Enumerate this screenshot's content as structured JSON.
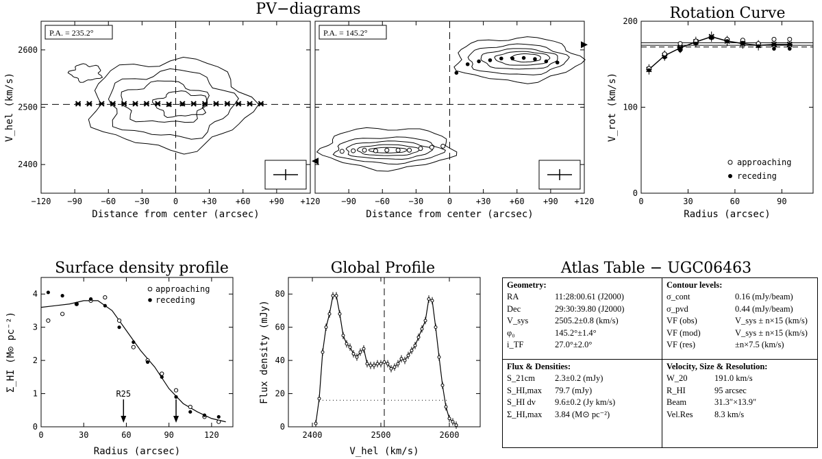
{
  "figure": {
    "pv_title": "PV−diagrams",
    "rc_title": "Rotation Curve",
    "sd_title": "Surface density profile",
    "gp_title": "Global Profile",
    "atlas_title": "Atlas Table − UGC06463"
  },
  "chart_data": [
    {
      "type": "contour",
      "id": "pv1",
      "label": "P.A. = 235.2°",
      "xlabel": "Distance from center (arcsec)",
      "ylabel": "V_hel (km/s)",
      "xlim": [
        -120,
        120
      ],
      "ylim": [
        2350,
        2650
      ],
      "xticks": [
        "−120",
        "−90",
        "−60",
        "−30",
        "0",
        "+30",
        "+60",
        "+90",
        "+120"
      ],
      "yticks": [
        "2400",
        "2500",
        "2600"
      ],
      "systemic_velocity": 2505,
      "points_receding": [
        [
          -87,
          2506
        ],
        [
          -77,
          2506
        ],
        [
          -66,
          2506
        ],
        [
          -56,
          2506
        ],
        [
          -46,
          2506
        ],
        [
          -36,
          2506
        ],
        [
          -26,
          2506
        ],
        [
          -16,
          2506
        ],
        [
          -6,
          2505
        ],
        [
          6,
          2506
        ],
        [
          16,
          2506
        ],
        [
          26,
          2506
        ],
        [
          36,
          2506
        ],
        [
          46,
          2506
        ],
        [
          56,
          2506
        ],
        [
          66,
          2506
        ],
        [
          76,
          2506
        ]
      ],
      "points_approaching": [
        [
          -6,
          2504
        ],
        [
          6,
          2505
        ]
      ]
    },
    {
      "type": "contour",
      "id": "pv2",
      "label": "P.A. = 145.2°",
      "xlabel": "Distance from center (arcsec)",
      "ylabel": "",
      "xlim": [
        -120,
        120
      ],
      "ylim": [
        2350,
        2650
      ],
      "xticks": [
        "−90",
        "−60",
        "−30",
        "0",
        "+30",
        "+60",
        "+90",
        "+120"
      ],
      "yticks": [],
      "systemic_velocity": 2505,
      "points_receding": [
        [
          6,
          2560
        ],
        [
          16,
          2575
        ],
        [
          26,
          2580
        ],
        [
          36,
          2582
        ],
        [
          46,
          2585
        ],
        [
          56,
          2585
        ],
        [
          66,
          2586
        ],
        [
          76,
          2584
        ],
        [
          86,
          2580
        ],
        [
          96,
          2578
        ]
      ],
      "points_approaching": [
        [
          -96,
          2423
        ],
        [
          -86,
          2424
        ],
        [
          -76,
          2425
        ],
        [
          -66,
          2424
        ],
        [
          -56,
          2425
        ],
        [
          -46,
          2425
        ],
        [
          -36,
          2425
        ],
        [
          -26,
          2428
        ],
        [
          -16,
          2430
        ],
        [
          -6,
          2432
        ]
      ]
    },
    {
      "type": "scatter",
      "id": "rotation-curve",
      "title": "Rotation Curve",
      "xlabel": "Radius (arcsec)",
      "ylabel": "V_rot (km/s)",
      "xlim": [
        0,
        110
      ],
      "ylim": [
        0,
        200
      ],
      "xticks": [
        "0",
        "30",
        "60",
        "90"
      ],
      "yticks": [
        "0",
        "100",
        "200"
      ],
      "series": [
        {
          "name": "approaching",
          "x": [
            5,
            15,
            25,
            35,
            45,
            55,
            65,
            75,
            85,
            95
          ],
          "y": [
            145,
            162,
            174,
            177,
            181,
            179,
            178,
            174,
            179,
            179
          ]
        },
        {
          "name": "receding",
          "x": [
            5,
            15,
            25,
            35,
            45,
            55,
            65,
            75,
            85,
            95
          ],
          "y": [
            143,
            158,
            166,
            174,
            181,
            177,
            175,
            171,
            168,
            168
          ]
        },
        {
          "name": "model",
          "x": [
            5,
            15,
            25,
            35,
            45,
            55,
            65,
            75,
            85,
            95
          ],
          "y": [
            144,
            160,
            169,
            176,
            182,
            177,
            174,
            172,
            173,
            173
          ]
        }
      ],
      "reference_lines": [
        175,
        172
      ]
    },
    {
      "type": "scatter",
      "id": "surface-density",
      "title": "Surface density profile",
      "xlabel": "Radius (arcsec)",
      "ylabel": "Σ_HI (M⊙ pc⁻²)",
      "xlim": [
        0,
        135
      ],
      "ylim": [
        0,
        4.5
      ],
      "xticks": [
        "0",
        "30",
        "60",
        "90",
        "120"
      ],
      "yticks": [
        "0",
        "1",
        "2",
        "3",
        "4"
      ],
      "series": [
        {
          "name": "approaching",
          "x": [
            5,
            15,
            25,
            35,
            45,
            55,
            65,
            75,
            85,
            95,
            105,
            115,
            125
          ],
          "y": [
            3.2,
            3.4,
            3.7,
            3.8,
            3.9,
            3.2,
            2.4,
            2.0,
            1.6,
            1.1,
            0.6,
            0.3,
            0.15
          ]
        },
        {
          "name": "receding",
          "x": [
            5,
            15,
            25,
            35,
            45,
            55,
            65,
            75,
            85,
            95,
            105,
            115,
            125
          ],
          "y": [
            4.05,
            3.95,
            3.7,
            3.85,
            3.65,
            3.0,
            2.55,
            1.95,
            1.5,
            0.9,
            0.45,
            0.35,
            0.3
          ]
        },
        {
          "name": "average",
          "x": [
            0,
            10,
            20,
            30,
            40,
            50,
            60,
            70,
            80,
            90,
            100,
            110,
            120,
            130
          ],
          "y": [
            3.6,
            3.65,
            3.7,
            3.8,
            3.8,
            3.5,
            2.9,
            2.3,
            1.8,
            1.15,
            0.7,
            0.45,
            0.25,
            0.15
          ]
        }
      ],
      "annotations": [
        {
          "text": "R25",
          "x": 58
        },
        {
          "text": "",
          "x": 95
        }
      ]
    },
    {
      "type": "line",
      "id": "global-profile",
      "title": "Global Profile",
      "xlabel": "V_hel (km/s)",
      "ylabel": "Flux density (mJy)",
      "xlim": [
        2365,
        2645
      ],
      "ylim": [
        0,
        90
      ],
      "xticks": [
        "2400",
        "2500",
        "2600"
      ],
      "yticks": [
        "0",
        "20",
        "40",
        "60",
        "80"
      ],
      "x": [
        2405,
        2410,
        2415,
        2420,
        2425,
        2430,
        2435,
        2440,
        2445,
        2450,
        2455,
        2460,
        2465,
        2470,
        2475,
        2480,
        2485,
        2490,
        2495,
        2500,
        2505,
        2510,
        2515,
        2520,
        2525,
        2530,
        2535,
        2540,
        2545,
        2550,
        2555,
        2560,
        2565,
        2570,
        2575,
        2580,
        2585,
        2590,
        2595,
        2600,
        2605,
        2610
      ],
      "y": [
        2,
        17,
        45,
        60,
        68,
        79,
        79,
        68,
        55,
        50,
        48,
        44,
        42,
        45,
        47,
        38,
        37,
        37,
        38,
        38,
        39,
        38,
        35,
        36,
        38,
        41,
        40,
        43,
        46,
        49,
        54,
        59,
        64,
        77,
        76,
        60,
        42,
        25,
        12,
        5,
        3,
        1
      ],
      "systemic_velocity": 2505,
      "w20_level": 16
    }
  ],
  "atlas": {
    "geometry": {
      "header": "Geometry:",
      "rows": [
        {
          "key": "RA",
          "value": "11:28:00.61 (J2000)"
        },
        {
          "key": "Dec",
          "value": "29:30:39.80 (J2000)"
        },
        {
          "key": "V_sys",
          "value": "2505.2±0.8 (km/s)"
        },
        {
          "key": "φ₀",
          "value": "145.2°±1.4°"
        },
        {
          "key": "i_TF",
          "value": "27.0°±2.0°"
        }
      ]
    },
    "contours": {
      "header": "Contour levels:",
      "rows": [
        {
          "key": "σ_cont",
          "value": "0.16 (mJy/beam)"
        },
        {
          "key": "σ_pvd",
          "value": "0.44 (mJy/beam)"
        },
        {
          "key": "VF (obs)",
          "value": "V_sys ± n×15 (km/s)"
        },
        {
          "key": "VF (mod)",
          "value": "V_sys ± n×15 (km/s)"
        },
        {
          "key": "VF (res)",
          "value": "±n×7.5 (km/s)"
        }
      ]
    },
    "flux": {
      "header": "Flux & Densities:",
      "rows": [
        {
          "key": "S_21cm",
          "value": "2.3±0.2 (mJy)"
        },
        {
          "key": "S_HI,max",
          "value": "79.7 (mJy)"
        },
        {
          "key": "S_HI dv",
          "value": "9.6±0.2 (Jy km/s)"
        },
        {
          "key": "Σ_HI,max",
          "value": "3.84 (M⊙ pc⁻²)"
        }
      ]
    },
    "velocity": {
      "header": "Velocity, Size & Resolution:",
      "rows": [
        {
          "key": "W_20",
          "value": "191.0 km/s"
        },
        {
          "key": "R_HI",
          "value": "95 arcsec"
        },
        {
          "key": "Beam",
          "value": "31.3″×13.9″"
        },
        {
          "key": "Vel.Res",
          "value": "8.3 km/s"
        }
      ]
    }
  }
}
